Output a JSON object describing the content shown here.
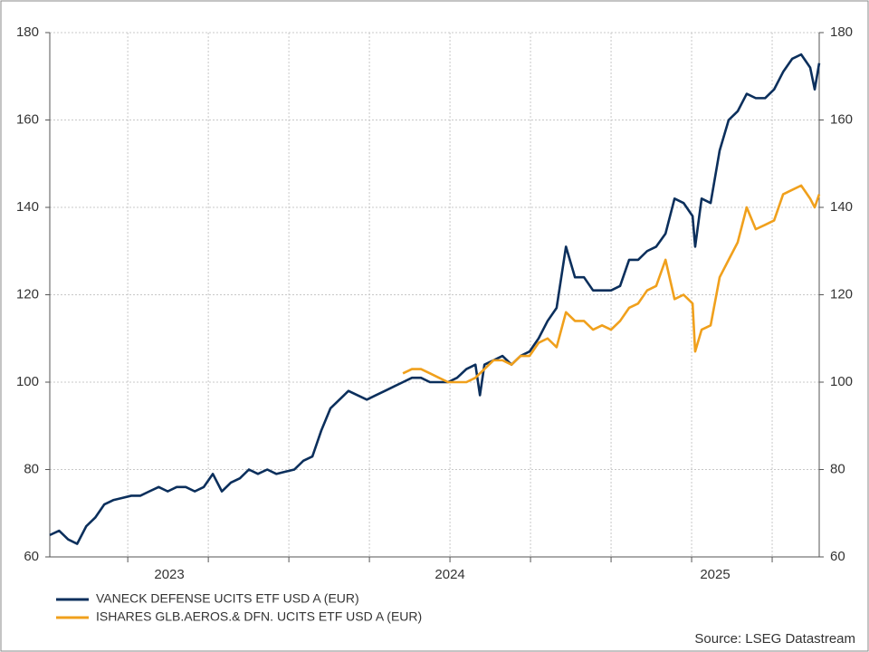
{
  "chart_data": {
    "type": "line",
    "source": "Source: LSEG Datastream",
    "x": [
      2023.258,
      2023.287,
      2023.315,
      2023.343,
      2023.371,
      2023.399,
      2023.427,
      2023.455,
      2023.483,
      2023.511,
      2023.539,
      2023.567,
      2023.596,
      2023.624,
      2023.652,
      2023.68,
      2023.708,
      2023.736,
      2023.764,
      2023.792,
      2023.82,
      2023.848,
      2023.876,
      2023.904,
      2023.933,
      2023.961,
      2023.989,
      2024.017,
      2024.045,
      2024.073,
      2024.101,
      2024.129,
      2024.157,
      2024.185,
      2024.213,
      2024.242,
      2024.27,
      2024.298,
      2024.326,
      2024.354,
      2024.382,
      2024.41,
      2024.438,
      2024.466,
      2024.494,
      2024.522,
      2024.551,
      2024.579,
      2024.593,
      2024.607,
      2024.635,
      2024.663,
      2024.691,
      2024.719,
      2024.747,
      2024.775,
      2024.803,
      2024.831,
      2024.86,
      2024.888,
      2024.916,
      2024.944,
      2024.972,
      2025.0,
      2025.028,
      2025.056,
      2025.084,
      2025.112,
      2025.14,
      2025.169,
      2025.197,
      2025.225,
      2025.253,
      2025.261,
      2025.281,
      2025.309,
      2025.337,
      2025.365,
      2025.393,
      2025.421,
      2025.449,
      2025.478,
      2025.506,
      2025.534,
      2025.562,
      2025.59,
      2025.618,
      2025.632,
      2025.646
    ],
    "series": [
      {
        "name": "VANECK DEFENSE UCITS ETF USD A (EUR)",
        "color": "#0b2f5c",
        "values": [
          65,
          66,
          64,
          63,
          67,
          69,
          72,
          73,
          73.5,
          74,
          74,
          75,
          76,
          75,
          76,
          76,
          75,
          76,
          79,
          75,
          77,
          78,
          80,
          79,
          80,
          79,
          79.5,
          80,
          82,
          83,
          89,
          94,
          96,
          98,
          97,
          96,
          97,
          98,
          99,
          100,
          101,
          101,
          100,
          100,
          100,
          101,
          103,
          104,
          97,
          104,
          105,
          106,
          104,
          106,
          107,
          110,
          114,
          117,
          131,
          124,
          124,
          121,
          121,
          121,
          122,
          128,
          128,
          130,
          131,
          134,
          142,
          141,
          138,
          131,
          142,
          141,
          153,
          160,
          162,
          166,
          165,
          165,
          167,
          171,
          174,
          175,
          172,
          167,
          173
        ]
      },
      {
        "name": "ISHARES GLB.AEROS.& DFN. UCITS ETF USD A (EUR)",
        "color": "#f0a01c",
        "values": [
          null,
          null,
          null,
          null,
          null,
          null,
          null,
          null,
          null,
          null,
          null,
          null,
          null,
          null,
          null,
          null,
          null,
          null,
          null,
          null,
          null,
          null,
          null,
          null,
          null,
          null,
          null,
          null,
          null,
          null,
          null,
          null,
          null,
          null,
          null,
          null,
          null,
          null,
          null,
          102,
          103,
          103,
          102,
          101,
          100,
          100,
          100,
          101,
          102,
          103,
          105,
          105,
          104,
          106,
          106,
          109,
          110,
          108,
          116,
          114,
          114,
          112,
          113,
          112,
          114,
          117,
          118,
          121,
          122,
          128,
          119,
          120,
          118,
          107,
          112,
          113,
          124,
          128,
          132,
          140,
          135,
          136,
          137,
          143,
          144,
          145,
          142,
          140,
          143
        ]
      }
    ],
    "xlim": [
      2023.258,
      2025.646
    ],
    "xgrid": [
      2023.5,
      2023.75,
      2024,
      2024.25,
      2024.5,
      2024.75,
      2025,
      2025.25,
      2025.5
    ],
    "year_labels": [
      "2023",
      "2024",
      "2025"
    ],
    "ylim": [
      60,
      180
    ],
    "yticks": [
      60,
      80,
      100,
      120,
      140,
      160,
      180
    ],
    "y2lim": [
      60,
      180
    ],
    "y2ticks": [
      60,
      80,
      100,
      120,
      140,
      160,
      180
    ],
    "grid": true
  }
}
